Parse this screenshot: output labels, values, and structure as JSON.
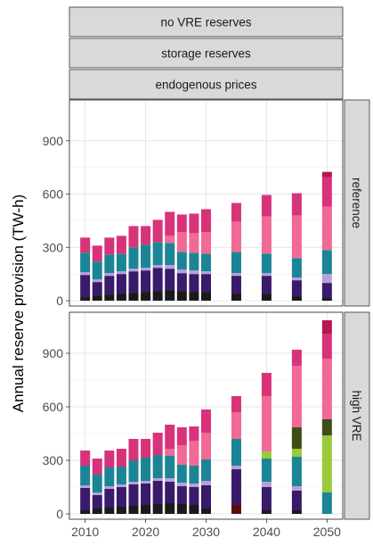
{
  "chart_data": {
    "type": "bar",
    "stacked": true,
    "ylabel": "Annual reserve provision (TW-h)",
    "xlabel": "",
    "column_strips": [
      "no VRE reserves",
      "storage reserves",
      "endogenous prices"
    ],
    "x_ticks": [
      2010,
      2020,
      2030,
      2040,
      2050
    ],
    "y_ticks": [
      0,
      300,
      600,
      900
    ],
    "ylim": [
      -30,
      1130
    ],
    "grid": true,
    "legend": "none",
    "colors": {
      "black": "#1a1a1a",
      "darkred": "#5e0b0b",
      "purple": "#3a1a6b",
      "lavender": "#b9a0dc",
      "teal": "#1c8595",
      "olive": "#3f4d16",
      "lime": "#9ac93a",
      "pink": "#f06a95",
      "magenta": "#d8337a",
      "crimson": "#b5174f"
    },
    "panels": [
      {
        "label": "reference",
        "bars": [
          {
            "x": 2010,
            "stack": [
              {
                "c": "black",
                "v": 20
              },
              {
                "c": "purple",
                "v": 125
              },
              {
                "c": "lavender",
                "v": 15
              },
              {
                "c": "teal",
                "v": 110
              },
              {
                "c": "magenta",
                "v": 85
              }
            ]
          },
          {
            "x": 2012,
            "stack": [
              {
                "c": "black",
                "v": 30
              },
              {
                "c": "purple",
                "v": 75
              },
              {
                "c": "lavender",
                "v": 15
              },
              {
                "c": "teal",
                "v": 100
              },
              {
                "c": "magenta",
                "v": 90
              }
            ]
          },
          {
            "x": 2014,
            "stack": [
              {
                "c": "black",
                "v": 35
              },
              {
                "c": "purple",
                "v": 105
              },
              {
                "c": "lavender",
                "v": 15
              },
              {
                "c": "teal",
                "v": 105
              },
              {
                "c": "magenta",
                "v": 95
              }
            ]
          },
          {
            "x": 2016,
            "stack": [
              {
                "c": "black",
                "v": 40
              },
              {
                "c": "purple",
                "v": 110
              },
              {
                "c": "lavender",
                "v": 15
              },
              {
                "c": "teal",
                "v": 100
              },
              {
                "c": "magenta",
                "v": 100
              }
            ]
          },
          {
            "x": 2018,
            "stack": [
              {
                "c": "black",
                "v": 45
              },
              {
                "c": "purple",
                "v": 120
              },
              {
                "c": "lavender",
                "v": 15
              },
              {
                "c": "teal",
                "v": 120
              },
              {
                "c": "magenta",
                "v": 120
              }
            ]
          },
          {
            "x": 2020,
            "stack": [
              {
                "c": "black",
                "v": 50
              },
              {
                "c": "purple",
                "v": 120
              },
              {
                "c": "lavender",
                "v": 15
              },
              {
                "c": "teal",
                "v": 130
              },
              {
                "c": "magenta",
                "v": 105
              }
            ]
          },
          {
            "x": 2022,
            "stack": [
              {
                "c": "black",
                "v": 55
              },
              {
                "c": "purple",
                "v": 130
              },
              {
                "c": "lavender",
                "v": 15
              },
              {
                "c": "teal",
                "v": 130
              },
              {
                "c": "magenta",
                "v": 125
              }
            ]
          },
          {
            "x": 2024,
            "stack": [
              {
                "c": "black",
                "v": 60
              },
              {
                "c": "purple",
                "v": 120
              },
              {
                "c": "lavender",
                "v": 20
              },
              {
                "c": "teal",
                "v": 125
              },
              {
                "c": "pink",
                "v": 40
              },
              {
                "c": "magenta",
                "v": 135
              }
            ]
          },
          {
            "x": 2026,
            "stack": [
              {
                "c": "black",
                "v": 55
              },
              {
                "c": "purple",
                "v": 100
              },
              {
                "c": "lavender",
                "v": 20
              },
              {
                "c": "teal",
                "v": 100
              },
              {
                "c": "pink",
                "v": 110
              },
              {
                "c": "magenta",
                "v": 100
              }
            ]
          },
          {
            "x": 2028,
            "stack": [
              {
                "c": "black",
                "v": 50
              },
              {
                "c": "purple",
                "v": 100
              },
              {
                "c": "lavender",
                "v": 20
              },
              {
                "c": "teal",
                "v": 100
              },
              {
                "c": "pink",
                "v": 110
              },
              {
                "c": "magenta",
                "v": 110
              }
            ]
          },
          {
            "x": 2030,
            "stack": [
              {
                "c": "black",
                "v": 50
              },
              {
                "c": "purple",
                "v": 100
              },
              {
                "c": "lavender",
                "v": 15
              },
              {
                "c": "teal",
                "v": 100
              },
              {
                "c": "pink",
                "v": 120
              },
              {
                "c": "magenta",
                "v": 130
              }
            ]
          },
          {
            "x": 2035,
            "stack": [
              {
                "c": "black",
                "v": 40
              },
              {
                "c": "purple",
                "v": 100
              },
              {
                "c": "lavender",
                "v": 15
              },
              {
                "c": "teal",
                "v": 120
              },
              {
                "c": "pink",
                "v": 170
              },
              {
                "c": "magenta",
                "v": 105
              }
            ]
          },
          {
            "x": 2040,
            "stack": [
              {
                "c": "black",
                "v": 40
              },
              {
                "c": "purple",
                "v": 100
              },
              {
                "c": "lavender",
                "v": 15
              },
              {
                "c": "teal",
                "v": 110
              },
              {
                "c": "pink",
                "v": 210
              },
              {
                "c": "magenta",
                "v": 120
              }
            ]
          },
          {
            "x": 2045,
            "stack": [
              {
                "c": "black",
                "v": 25
              },
              {
                "c": "purple",
                "v": 90
              },
              {
                "c": "lavender",
                "v": 15
              },
              {
                "c": "teal",
                "v": 110
              },
              {
                "c": "pink",
                "v": 240
              },
              {
                "c": "magenta",
                "v": 125
              }
            ]
          },
          {
            "x": 2050,
            "stack": [
              {
                "c": "black",
                "v": 15
              },
              {
                "c": "purple",
                "v": 85
              },
              {
                "c": "lavender",
                "v": 50
              },
              {
                "c": "teal",
                "v": 135
              },
              {
                "c": "pink",
                "v": 245
              },
              {
                "c": "magenta",
                "v": 165
              },
              {
                "c": "crimson",
                "v": 30
              }
            ]
          }
        ]
      },
      {
        "label": "high VRE",
        "bars": [
          {
            "x": 2010,
            "stack": [
              {
                "c": "black",
                "v": 20
              },
              {
                "c": "purple",
                "v": 125
              },
              {
                "c": "lavender",
                "v": 15
              },
              {
                "c": "teal",
                "v": 110
              },
              {
                "c": "magenta",
                "v": 85
              }
            ]
          },
          {
            "x": 2012,
            "stack": [
              {
                "c": "black",
                "v": 30
              },
              {
                "c": "purple",
                "v": 75
              },
              {
                "c": "lavender",
                "v": 15
              },
              {
                "c": "teal",
                "v": 100
              },
              {
                "c": "magenta",
                "v": 90
              }
            ]
          },
          {
            "x": 2014,
            "stack": [
              {
                "c": "black",
                "v": 35
              },
              {
                "c": "purple",
                "v": 105
              },
              {
                "c": "lavender",
                "v": 15
              },
              {
                "c": "teal",
                "v": 105
              },
              {
                "c": "magenta",
                "v": 95
              }
            ]
          },
          {
            "x": 2016,
            "stack": [
              {
                "c": "black",
                "v": 40
              },
              {
                "c": "purple",
                "v": 110
              },
              {
                "c": "lavender",
                "v": 15
              },
              {
                "c": "teal",
                "v": 100
              },
              {
                "c": "magenta",
                "v": 100
              }
            ]
          },
          {
            "x": 2018,
            "stack": [
              {
                "c": "black",
                "v": 45
              },
              {
                "c": "purple",
                "v": 120
              },
              {
                "c": "lavender",
                "v": 15
              },
              {
                "c": "teal",
                "v": 120
              },
              {
                "c": "magenta",
                "v": 120
              }
            ]
          },
          {
            "x": 2020,
            "stack": [
              {
                "c": "black",
                "v": 50
              },
              {
                "c": "purple",
                "v": 120
              },
              {
                "c": "lavender",
                "v": 15
              },
              {
                "c": "teal",
                "v": 130
              },
              {
                "c": "magenta",
                "v": 105
              }
            ]
          },
          {
            "x": 2022,
            "stack": [
              {
                "c": "black",
                "v": 55
              },
              {
                "c": "purple",
                "v": 130
              },
              {
                "c": "lavender",
                "v": 15
              },
              {
                "c": "teal",
                "v": 130
              },
              {
                "c": "magenta",
                "v": 125
              }
            ]
          },
          {
            "x": 2024,
            "stack": [
              {
                "c": "black",
                "v": 60
              },
              {
                "c": "purple",
                "v": 120
              },
              {
                "c": "lavender",
                "v": 20
              },
              {
                "c": "teal",
                "v": 125
              },
              {
                "c": "pink",
                "v": 40
              },
              {
                "c": "magenta",
                "v": 135
              }
            ]
          },
          {
            "x": 2026,
            "stack": [
              {
                "c": "black",
                "v": 55
              },
              {
                "c": "purple",
                "v": 100
              },
              {
                "c": "lavender",
                "v": 20
              },
              {
                "c": "teal",
                "v": 100
              },
              {
                "c": "pink",
                "v": 110
              },
              {
                "c": "magenta",
                "v": 100
              }
            ]
          },
          {
            "x": 2028,
            "stack": [
              {
                "c": "black",
                "v": 50
              },
              {
                "c": "purple",
                "v": 100
              },
              {
                "c": "lavender",
                "v": 20
              },
              {
                "c": "teal",
                "v": 100
              },
              {
                "c": "pink",
                "v": 140
              },
              {
                "c": "magenta",
                "v": 80
              }
            ]
          },
          {
            "x": 2030,
            "stack": [
              {
                "c": "black",
                "v": 30
              },
              {
                "c": "purple",
                "v": 130
              },
              {
                "c": "lavender",
                "v": 25
              },
              {
                "c": "teal",
                "v": 120
              },
              {
                "c": "pink",
                "v": 150
              },
              {
                "c": "magenta",
                "v": 130
              }
            ]
          },
          {
            "x": 2035,
            "stack": [
              {
                "c": "darkred",
                "v": 50
              },
              {
                "c": "purple",
                "v": 200
              },
              {
                "c": "lavender",
                "v": 20
              },
              {
                "c": "teal",
                "v": 150
              },
              {
                "c": "pink",
                "v": 150
              },
              {
                "c": "magenta",
                "v": 90
              }
            ]
          },
          {
            "x": 2040,
            "stack": [
              {
                "c": "black",
                "v": 20
              },
              {
                "c": "purple",
                "v": 130
              },
              {
                "c": "lavender",
                "v": 30
              },
              {
                "c": "teal",
                "v": 130
              },
              {
                "c": "lime",
                "v": 40
              },
              {
                "c": "pink",
                "v": 310
              },
              {
                "c": "magenta",
                "v": 130
              }
            ]
          },
          {
            "x": 2045,
            "stack": [
              {
                "c": "black",
                "v": 20
              },
              {
                "c": "purple",
                "v": 110
              },
              {
                "c": "lavender",
                "v": 25
              },
              {
                "c": "teal",
                "v": 165
              },
              {
                "c": "lime",
                "v": 45
              },
              {
                "c": "olive",
                "v": 120
              },
              {
                "c": "pink",
                "v": 345
              },
              {
                "c": "magenta",
                "v": 90
              }
            ]
          },
          {
            "x": 2050,
            "stack": [
              {
                "c": "teal",
                "v": 120
              },
              {
                "c": "lime",
                "v": 320
              },
              {
                "c": "olive",
                "v": 90
              },
              {
                "c": "pink",
                "v": 340
              },
              {
                "c": "magenta",
                "v": 140
              },
              {
                "c": "crimson",
                "v": 75
              }
            ]
          }
        ]
      }
    ]
  }
}
